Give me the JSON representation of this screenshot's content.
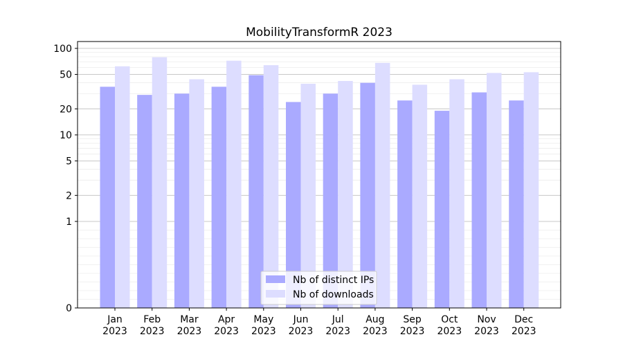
{
  "chart_data": {
    "type": "bar",
    "title": "MobilityTransformR 2023",
    "xlabel": "",
    "ylabel": "",
    "yscale": "symlog",
    "ylim": [
      0,
      120
    ],
    "yticks": [
      0,
      1,
      2,
      5,
      10,
      20,
      50,
      100
    ],
    "ytick_labels": [
      "0",
      "1",
      "2",
      "5",
      "10",
      "20",
      "50",
      "100"
    ],
    "grid": "horizontal",
    "legend_position": "bottom-center",
    "categories": [
      "Jan\n2023",
      "Feb\n2023",
      "Mar\n2023",
      "Apr\n2023",
      "May\n2023",
      "Jun\n2023",
      "Jul\n2023",
      "Aug\n2023",
      "Sep\n2023",
      "Oct\n2023",
      "Nov\n2023",
      "Dec\n2023"
    ],
    "series": [
      {
        "name": "Nb of distinct IPs",
        "color": "#aaaaff",
        "values": [
          36,
          29,
          30,
          36,
          49,
          24,
          30,
          40,
          25,
          19,
          31,
          25
        ]
      },
      {
        "name": "Nb of downloads",
        "color": "#ddddff",
        "values": [
          62,
          79,
          44,
          72,
          64,
          39,
          42,
          68,
          38,
          44,
          52,
          53
        ]
      }
    ]
  }
}
